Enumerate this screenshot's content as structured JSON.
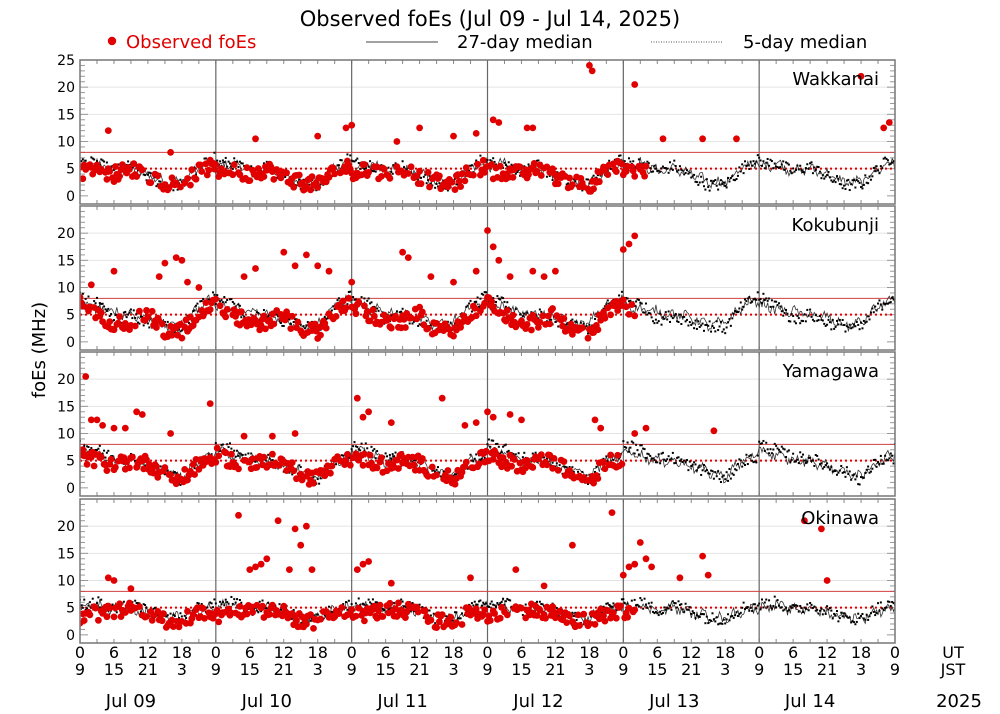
{
  "chart_data": {
    "type": "scatter",
    "title": "Observed foEs (Jul 09 - Jul 14, 2025)",
    "ylabel": "foEs (MHz)",
    "xlabel": "",
    "legend": {
      "placement": "top",
      "entries": [
        {
          "label": "Observed foEs",
          "style": "red-dot",
          "color": "#e00000"
        },
        {
          "label": "27-day median",
          "style": "solid-line",
          "color": "#333333"
        },
        {
          "label": "5-day median",
          "style": "dotted-line",
          "color": "#000000"
        }
      ]
    },
    "x_ut_ticks": [
      "0",
      "6",
      "12",
      "18",
      "0",
      "6",
      "12",
      "18",
      "0",
      "6",
      "12",
      "18",
      "0",
      "6",
      "12",
      "18",
      "0",
      "6",
      "12",
      "18",
      "0",
      "6",
      "12",
      "18",
      "0"
    ],
    "x_jst_ticks": [
      "9",
      "15",
      "21",
      "3",
      "9",
      "15",
      "21",
      "3",
      "9",
      "15",
      "21",
      "3",
      "9",
      "15",
      "21",
      "3",
      "9",
      "15",
      "21",
      "3",
      "9",
      "15",
      "21",
      "3",
      "9"
    ],
    "x_ut_label": "UT",
    "x_jst_label": "JST",
    "days": [
      "Jul 09",
      "Jul 10",
      "Jul 11",
      "Jul 12",
      "Jul 13",
      "Jul 14"
    ],
    "year": "2025",
    "xlim_hours": [
      0,
      144
    ],
    "reference_lines": {
      "upper": 8,
      "lower_dotted": 5,
      "upper_color": "#d04040",
      "lower_color": "#e00000"
    },
    "grid": true,
    "panels": [
      {
        "station": "Wakkanai",
        "yticks": [
          0,
          5,
          10,
          15,
          20,
          25
        ],
        "ylim": [
          -1.5,
          25
        ],
        "median27_daily": [
          5,
          6,
          4.5,
          5,
          4,
          2.5,
          2.5,
          5,
          6.5
        ],
        "median5_daily": [
          6,
          6,
          4.5,
          5.5,
          3.5,
          2,
          2,
          5,
          7.5
        ],
        "observed_daily": [
          4.5,
          4.5,
          4,
          5,
          3.5,
          2.5,
          2,
          4.5,
          5.5
        ],
        "observed_end_hour": 100,
        "outliers": [
          [
            5,
            12
          ],
          [
            16,
            8
          ],
          [
            31,
            10.5
          ],
          [
            42,
            11
          ],
          [
            47,
            12.5
          ],
          [
            48,
            13
          ],
          [
            56,
            10
          ],
          [
            60,
            12.5
          ],
          [
            66,
            11
          ],
          [
            70,
            11.5
          ],
          [
            73,
            14
          ],
          [
            74,
            13.5
          ],
          [
            79,
            12.5
          ],
          [
            80,
            12.5
          ],
          [
            90,
            24
          ],
          [
            90.5,
            23
          ],
          [
            98,
            20.5
          ],
          [
            103,
            10.5
          ],
          [
            110,
            10.5
          ],
          [
            116,
            10.5
          ],
          [
            138,
            22
          ],
          [
            142,
            12.5
          ],
          [
            143,
            13.5
          ]
        ]
      },
      {
        "station": "Kokubunji",
        "yticks": [
          0,
          5,
          10,
          15,
          20
        ],
        "ylim": [
          -1.5,
          25
        ],
        "median27_daily": [
          7,
          6,
          5.5,
          5,
          4.5,
          3,
          3.5,
          6.5,
          8
        ],
        "median5_daily": [
          8,
          7,
          4,
          5,
          3.5,
          3,
          2.5,
          6.5,
          8.5
        ],
        "observed_daily": [
          7,
          5,
          3.5,
          3.5,
          5,
          2,
          2,
          5,
          8
        ],
        "observed_end_hour": 98,
        "outliers": [
          [
            2,
            10.5
          ],
          [
            6,
            13
          ],
          [
            14,
            12
          ],
          [
            15,
            14.5
          ],
          [
            17,
            15.5
          ],
          [
            18,
            15
          ],
          [
            19,
            11
          ],
          [
            21,
            10
          ],
          [
            29,
            12
          ],
          [
            31,
            13.5
          ],
          [
            36,
            16.5
          ],
          [
            38,
            14
          ],
          [
            40,
            16
          ],
          [
            42,
            14
          ],
          [
            44,
            13
          ],
          [
            48,
            11
          ],
          [
            57,
            16.5
          ],
          [
            58,
            15.5
          ],
          [
            62,
            12
          ],
          [
            66,
            11
          ],
          [
            70,
            13
          ],
          [
            72,
            20.5
          ],
          [
            73,
            17.5
          ],
          [
            74,
            15
          ],
          [
            76,
            12
          ],
          [
            80,
            13
          ],
          [
            82,
            12
          ],
          [
            84,
            13
          ],
          [
            96,
            17
          ],
          [
            97,
            18
          ],
          [
            98,
            19.5
          ]
        ]
      },
      {
        "station": "Yamagawa",
        "yticks": [
          0,
          5,
          10,
          15,
          20
        ],
        "ylim": [
          -1.5,
          25
        ],
        "median27_daily": [
          7,
          6,
          5,
          5,
          4,
          3,
          2,
          5,
          6
        ],
        "median5_daily": [
          8,
          7,
          5.5,
          5.5,
          4,
          3,
          1.5,
          5,
          5.5
        ],
        "observed_daily": [
          6,
          5,
          4,
          5,
          4.5,
          2.5,
          1.5,
          4.5,
          5.5
        ],
        "observed_end_hour": 96,
        "outliers": [
          [
            1,
            20.5
          ],
          [
            2,
            12.5
          ],
          [
            3,
            12.5
          ],
          [
            4,
            11.5
          ],
          [
            6,
            11
          ],
          [
            8,
            11
          ],
          [
            10,
            14
          ],
          [
            11,
            13.5
          ],
          [
            16,
            10
          ],
          [
            23,
            15.5
          ],
          [
            29,
            9.5
          ],
          [
            34,
            9.5
          ],
          [
            38,
            10
          ],
          [
            49,
            16.5
          ],
          [
            50,
            13
          ],
          [
            51,
            14
          ],
          [
            55,
            12
          ],
          [
            64,
            16.5
          ],
          [
            68,
            11.5
          ],
          [
            70,
            12
          ],
          [
            72,
            14
          ],
          [
            73,
            13
          ],
          [
            76,
            13.5
          ],
          [
            78,
            12.5
          ],
          [
            91,
            12.5
          ],
          [
            92,
            11
          ],
          [
            98,
            10
          ],
          [
            100,
            11
          ],
          [
            112,
            10.5
          ]
        ]
      },
      {
        "station": "Okinawa",
        "yticks": [
          0,
          5,
          10,
          15,
          20
        ],
        "ylim": [
          -1.5,
          25
        ],
        "median27_daily": [
          5,
          5.5,
          4.5,
          5,
          4,
          3.5,
          3,
          4.5,
          5
        ],
        "median5_daily": [
          5.5,
          6,
          4.5,
          5.5,
          4.5,
          3,
          3,
          5,
          5.5
        ],
        "observed_daily": [
          3.5,
          4,
          4.5,
          4.5,
          4,
          2.5,
          2.5,
          4,
          4.5
        ],
        "observed_end_hour": 98,
        "outliers": [
          [
            5,
            10.5
          ],
          [
            6,
            10
          ],
          [
            9,
            8.5
          ],
          [
            28,
            22
          ],
          [
            30,
            12
          ],
          [
            31,
            12.5
          ],
          [
            32,
            13
          ],
          [
            33,
            14
          ],
          [
            35,
            21
          ],
          [
            37,
            12
          ],
          [
            38,
            19.5
          ],
          [
            39,
            16.5
          ],
          [
            40,
            20
          ],
          [
            41,
            12
          ],
          [
            49,
            12
          ],
          [
            50,
            13
          ],
          [
            51,
            13.5
          ],
          [
            55,
            9.5
          ],
          [
            69,
            10.5
          ],
          [
            77,
            12
          ],
          [
            82,
            9
          ],
          [
            87,
            16.5
          ],
          [
            94,
            22.5
          ],
          [
            96,
            11
          ],
          [
            97,
            12.5
          ],
          [
            98,
            13
          ],
          [
            99,
            17
          ],
          [
            100,
            14
          ],
          [
            101,
            12.5
          ],
          [
            106,
            10.5
          ],
          [
            110,
            14.5
          ],
          [
            111,
            11
          ],
          [
            128,
            21
          ],
          [
            131,
            19.5
          ],
          [
            132,
            10
          ]
        ]
      }
    ]
  }
}
